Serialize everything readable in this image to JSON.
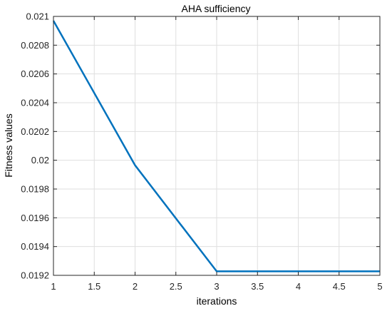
{
  "chart_data": {
    "type": "line",
    "title": "AHA sufficiency",
    "xlabel": "iterations",
    "ylabel": "Fitness values",
    "xlim": [
      1,
      5
    ],
    "ylim": [
      0.0192,
      0.021
    ],
    "grid": true,
    "x_ticks": [
      1,
      1.5,
      2,
      2.5,
      3,
      3.5,
      4,
      4.5,
      5
    ],
    "x_tick_labels": [
      "1",
      "1.5",
      "2",
      "2.5",
      "3",
      "3.5",
      "4",
      "4.5",
      "5"
    ],
    "y_ticks": [
      0.0192,
      0.0194,
      0.0196,
      0.0198,
      0.02,
      0.0202,
      0.0204,
      0.0206,
      0.0208,
      0.021
    ],
    "y_tick_labels": [
      "0.0192",
      "0.0194",
      "0.0196",
      "0.0198",
      "0.02",
      "0.0202",
      "0.0204",
      "0.0206",
      "0.0208",
      "0.021"
    ],
    "series": [
      {
        "x": [
          1,
          2,
          3,
          4,
          5
        ],
        "values": [
          0.02097,
          0.019965,
          0.019228,
          0.019228,
          0.019228
        ],
        "color": "#0072BD"
      }
    ]
  }
}
